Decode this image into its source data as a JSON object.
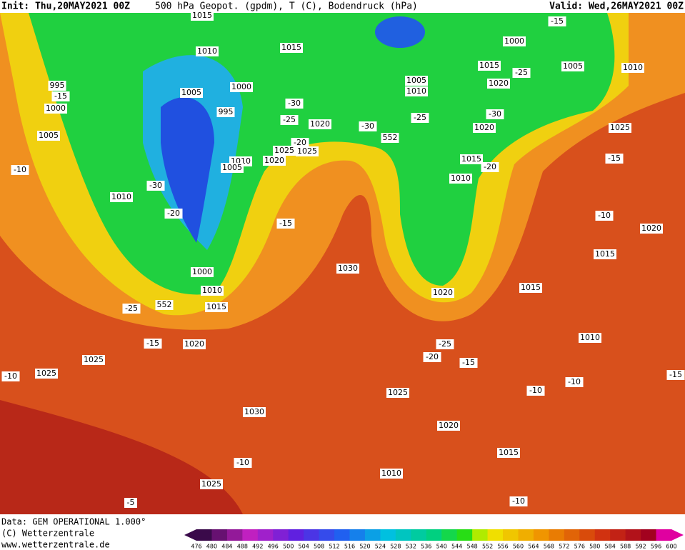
{
  "header": {
    "init": "Init: Thu,20MAY2021 00Z",
    "title": "500 hPa Geopot. (gpdm), T (C), Bodendruck (hPa)",
    "valid": "Valid: Wed,26MAY2021 00Z"
  },
  "footer": {
    "data": "Data: GEM OPERATIONAL 1.000°",
    "copyright": "(C) Wetterzentrale",
    "url": "www.wetterzentrale.de"
  },
  "colorbar": {
    "labels": [
      476,
      480,
      484,
      488,
      492,
      496,
      500,
      504,
      508,
      512,
      516,
      520,
      524,
      528,
      532,
      536,
      540,
      544,
      548,
      552,
      556,
      560,
      564,
      568,
      572,
      576,
      580,
      584,
      588,
      592,
      596,
      600
    ]
  },
  "map_labels": [
    "1015",
    "1010",
    "1015",
    "1000",
    "-15",
    "1005",
    "1010",
    "1015",
    "-25",
    "1020",
    "1005",
    "1010",
    "995",
    "-15",
    "1000",
    "1005",
    "1000",
    "995",
    "-30",
    "-25",
    "1020",
    "-30",
    "-25",
    "-30",
    "1020",
    "1025",
    "1005",
    "552",
    "-20",
    "1025",
    "1025",
    "1010",
    "1020",
    "1005",
    "1015",
    "-20",
    "-10",
    "-15",
    "1010",
    "-30",
    "1010",
    "-20",
    "-15",
    "-10",
    "1020",
    "1015",
    "1000",
    "1030",
    "1010",
    "1020",
    "1015",
    "552",
    "1015",
    "-25",
    "-15",
    "1020",
    "-25",
    "-20",
    "-15",
    "1025",
    "-10",
    "1025",
    "1010",
    "-15",
    "-10",
    "-10",
    "1025",
    "1030",
    "1020",
    "1015",
    "-10",
    "1010",
    "1025",
    "-10",
    "-5"
  ]
}
